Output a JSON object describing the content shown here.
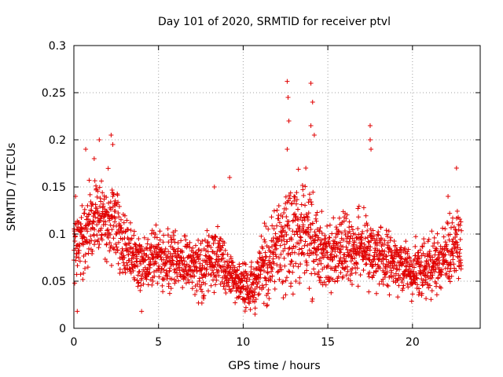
{
  "chart_data": {
    "type": "scatter",
    "title": "Day 101 of 2020, SRMTID for receiver ptvl",
    "xlabel": "GPS time / hours",
    "ylabel": "SRMTID / TECUs",
    "xlim": [
      0,
      24
    ],
    "ylim": [
      0,
      0.3
    ],
    "xticks": [
      0,
      5,
      10,
      15,
      20
    ],
    "xtick_labels": [
      "0",
      "5",
      "10",
      "15",
      "20"
    ],
    "yticks": [
      0,
      0.05,
      0.1,
      0.15,
      0.2,
      0.25,
      0.3
    ],
    "ytick_labels": [
      "0",
      "0.05",
      "0.1",
      "0.15",
      "0.2",
      "0.25",
      "0.3"
    ],
    "grid": true,
    "marker": "+",
    "marker_color": "#e00000",
    "series": [
      {
        "name": "SRMTID",
        "profile": {
          "x": [
            0,
            0.3,
            0.7,
            1.0,
            1.3,
            1.7,
            2.0,
            2.3,
            2.6,
            3.0,
            3.5,
            4.0,
            4.5,
            5.0,
            5.5,
            6.0,
            6.5,
            7.0,
            7.5,
            8.0,
            8.5,
            9.0,
            9.5,
            10.0,
            10.3,
            10.6,
            11.0,
            11.5,
            12.0,
            12.5,
            13.0,
            13.5,
            14.0,
            14.5,
            15.0,
            15.5,
            16.0,
            16.5,
            17.0,
            17.5,
            18.0,
            18.5,
            19.0,
            19.5,
            20.0,
            20.5,
            21.0,
            21.5,
            22.0,
            22.5,
            22.9
          ],
          "center": [
            0.075,
            0.09,
            0.1,
            0.11,
            0.12,
            0.115,
            0.11,
            0.12,
            0.1,
            0.085,
            0.075,
            0.07,
            0.072,
            0.075,
            0.07,
            0.072,
            0.07,
            0.068,
            0.06,
            0.075,
            0.07,
            0.065,
            0.055,
            0.045,
            0.038,
            0.042,
            0.06,
            0.075,
            0.085,
            0.09,
            0.1,
            0.1,
            0.095,
            0.085,
            0.075,
            0.08,
            0.085,
            0.08,
            0.085,
            0.075,
            0.075,
            0.07,
            0.07,
            0.065,
            0.055,
            0.065,
            0.065,
            0.07,
            0.08,
            0.085,
            0.09
          ],
          "spread": [
            0.03,
            0.045,
            0.045,
            0.045,
            0.05,
            0.045,
            0.045,
            0.05,
            0.04,
            0.03,
            0.03,
            0.03,
            0.03,
            0.03,
            0.03,
            0.03,
            0.03,
            0.03,
            0.03,
            0.035,
            0.035,
            0.03,
            0.03,
            0.025,
            0.02,
            0.025,
            0.035,
            0.04,
            0.05,
            0.06,
            0.06,
            0.055,
            0.055,
            0.04,
            0.035,
            0.035,
            0.04,
            0.035,
            0.04,
            0.035,
            0.035,
            0.035,
            0.03,
            0.03,
            0.03,
            0.03,
            0.03,
            0.035,
            0.04,
            0.04,
            0.04
          ]
        },
        "peaks": [
          {
            "x": 0.7,
            "y": 0.19
          },
          {
            "x": 1.2,
            "y": 0.18
          },
          {
            "x": 1.5,
            "y": 0.2
          },
          {
            "x": 2.2,
            "y": 0.205
          },
          {
            "x": 2.3,
            "y": 0.195
          },
          {
            "x": 12.6,
            "y": 0.262
          },
          {
            "x": 12.65,
            "y": 0.245
          },
          {
            "x": 12.7,
            "y": 0.22
          },
          {
            "x": 12.6,
            "y": 0.19
          },
          {
            "x": 14.0,
            "y": 0.26
          },
          {
            "x": 14.1,
            "y": 0.24
          },
          {
            "x": 14.2,
            "y": 0.205
          },
          {
            "x": 14.0,
            "y": 0.215
          },
          {
            "x": 13.7,
            "y": 0.17
          },
          {
            "x": 17.5,
            "y": 0.215
          },
          {
            "x": 17.5,
            "y": 0.2
          },
          {
            "x": 17.55,
            "y": 0.19
          },
          {
            "x": 22.6,
            "y": 0.17
          },
          {
            "x": 0.1,
            "y": 0.14
          },
          {
            "x": 9.2,
            "y": 0.16
          },
          {
            "x": 8.3,
            "y": 0.15
          },
          {
            "x": 22.1,
            "y": 0.14
          },
          {
            "x": 0.2,
            "y": 0.018
          },
          {
            "x": 10.7,
            "y": 0.015
          },
          {
            "x": 4.0,
            "y": 0.018
          }
        ]
      }
    ]
  }
}
